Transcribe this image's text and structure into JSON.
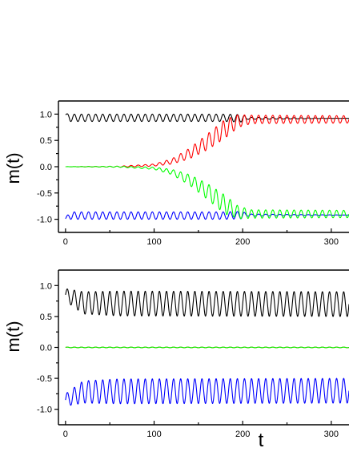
{
  "chart_data": [
    {
      "type": "line",
      "ylabel": "m(t)",
      "xlabel": "",
      "xlim": [
        -8,
        320
      ],
      "ylim": [
        -1.25,
        1.25
      ],
      "x_ticks": [
        0,
        100,
        200,
        300
      ],
      "y_ticks": [
        1.0,
        0.5,
        0.0,
        -0.5,
        -1.0
      ],
      "x_tick_labels": [
        "0",
        "100",
        "200",
        "300"
      ],
      "y_tick_labels": [
        "1.0",
        "0.5",
        "0.0",
        "-0.5",
        "-1.0"
      ],
      "grid": false,
      "series": [
        {
          "color": "#000000",
          "samples": [
            {
              "t": 0,
              "center": 0.99,
              "amp": 0.02
            },
            {
              "t": 5,
              "center": 0.93,
              "amp": 0.07
            },
            {
              "t": 100,
              "center": 0.93,
              "amp": 0.07
            },
            {
              "t": 180,
              "center": 0.93,
              "amp": 0.07
            },
            {
              "t": 200,
              "center": 0.92,
              "amp": 0.07
            },
            {
              "t": 205,
              "center": 0.92,
              "amp": 0.02
            },
            {
              "t": 320,
              "center": 0.92,
              "amp": 0.0
            }
          ]
        },
        {
          "color": "#0000ff",
          "samples": [
            {
              "t": 0,
              "center": -0.99,
              "amp": 0.02
            },
            {
              "t": 5,
              "center": -0.93,
              "amp": 0.07
            },
            {
              "t": 100,
              "center": -0.93,
              "amp": 0.07
            },
            {
              "t": 180,
              "center": -0.93,
              "amp": 0.07
            },
            {
              "t": 200,
              "center": -0.92,
              "amp": 0.07
            },
            {
              "t": 205,
              "center": -0.92,
              "amp": 0.02
            },
            {
              "t": 320,
              "center": -0.92,
              "amp": 0.0
            }
          ]
        },
        {
          "color": "#ff0000",
          "samples": [
            {
              "t": 0,
              "center": 0.0,
              "amp": 0.0
            },
            {
              "t": 60,
              "center": 0.0,
              "amp": 0.01
            },
            {
              "t": 100,
              "center": 0.03,
              "amp": 0.02
            },
            {
              "t": 120,
              "center": 0.1,
              "amp": 0.05
            },
            {
              "t": 140,
              "center": 0.25,
              "amp": 0.1
            },
            {
              "t": 160,
              "center": 0.47,
              "amp": 0.15
            },
            {
              "t": 180,
              "center": 0.72,
              "amp": 0.18
            },
            {
              "t": 195,
              "center": 0.87,
              "amp": 0.12
            },
            {
              "t": 210,
              "center": 0.9,
              "amp": 0.08
            },
            {
              "t": 320,
              "center": 0.9,
              "amp": 0.07
            }
          ]
        },
        {
          "color": "#00ff00",
          "samples": [
            {
              "t": 0,
              "center": 0.0,
              "amp": 0.0
            },
            {
              "t": 60,
              "center": 0.0,
              "amp": 0.01
            },
            {
              "t": 100,
              "center": -0.03,
              "amp": 0.02
            },
            {
              "t": 120,
              "center": -0.1,
              "amp": 0.05
            },
            {
              "t": 140,
              "center": -0.25,
              "amp": 0.1
            },
            {
              "t": 160,
              "center": -0.47,
              "amp": 0.15
            },
            {
              "t": 180,
              "center": -0.72,
              "amp": 0.18
            },
            {
              "t": 195,
              "center": -0.87,
              "amp": 0.12
            },
            {
              "t": 210,
              "center": -0.9,
              "amp": 0.08
            },
            {
              "t": 320,
              "center": -0.9,
              "amp": 0.07
            }
          ]
        }
      ]
    },
    {
      "type": "line",
      "ylabel": "m(t)",
      "xlabel": "t",
      "xlim": [
        -8,
        320
      ],
      "ylim": [
        -1.25,
        1.25
      ],
      "x_ticks": [
        0,
        100,
        200,
        300
      ],
      "y_ticks": [
        1.0,
        0.5,
        0.0,
        -0.5,
        -1.0
      ],
      "x_tick_labels": [
        "0",
        "100",
        "200",
        "300"
      ],
      "y_tick_labels": [
        "1.0",
        "0.5",
        "0.0",
        "-0.5",
        "-1.0"
      ],
      "grid": false,
      "series": [
        {
          "color": "#000000",
          "samples": [
            {
              "t": 0,
              "center": 0.85,
              "amp": 0.1
            },
            {
              "t": 20,
              "center": 0.72,
              "amp": 0.18
            },
            {
              "t": 60,
              "center": 0.71,
              "amp": 0.2
            },
            {
              "t": 320,
              "center": 0.7,
              "amp": 0.2
            }
          ]
        },
        {
          "color": "#0000ff",
          "samples": [
            {
              "t": 0,
              "center": -0.85,
              "amp": 0.1
            },
            {
              "t": 20,
              "center": -0.72,
              "amp": 0.18
            },
            {
              "t": 60,
              "center": -0.71,
              "amp": 0.2
            },
            {
              "t": 320,
              "center": -0.7,
              "amp": 0.2
            }
          ]
        },
        {
          "color": "#ff0000",
          "samples": [
            {
              "t": 0,
              "center": 0.0,
              "amp": 0.005
            },
            {
              "t": 320,
              "center": 0.0,
              "amp": 0.005
            }
          ]
        },
        {
          "color": "#00ff00",
          "samples": [
            {
              "t": 0,
              "center": 0.0,
              "amp": 0.005
            },
            {
              "t": 320,
              "center": 0.0,
              "amp": 0.005
            }
          ]
        }
      ]
    }
  ]
}
